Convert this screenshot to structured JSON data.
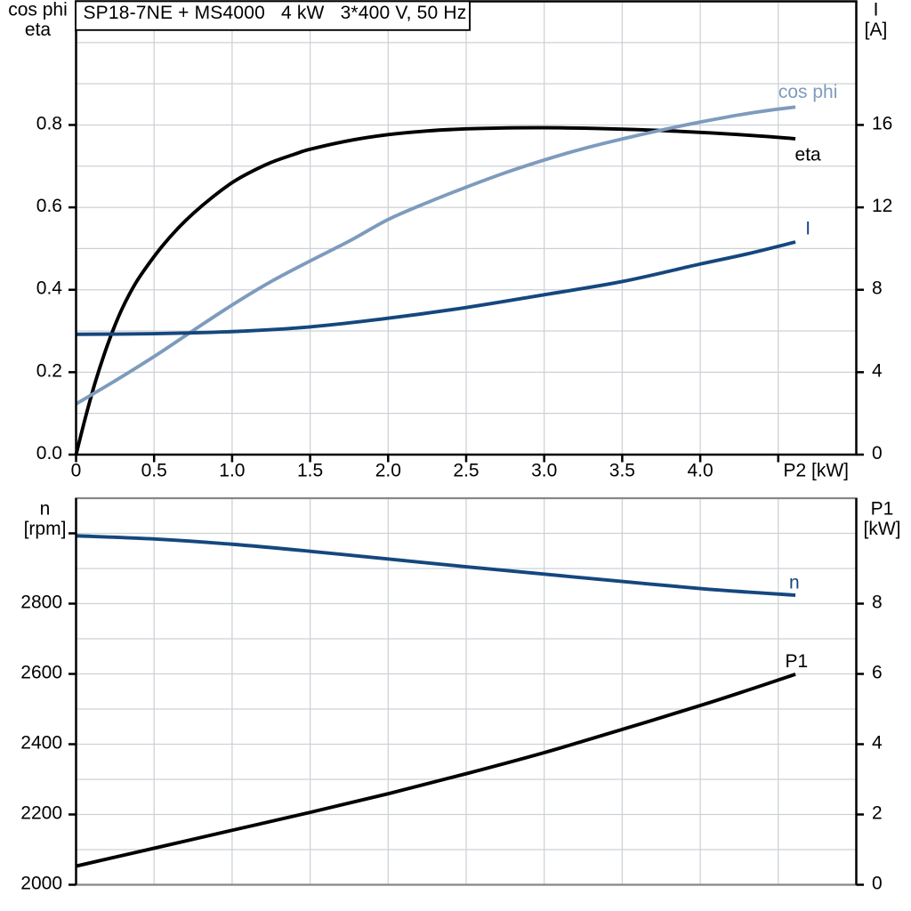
{
  "title_box": {
    "text": "SP18-7NE + MS4000   4 kW   3*400 V, 50 Hz"
  },
  "colors": {
    "black": "#000000",
    "dark_blue": "#15477e",
    "steel_blue": "#7d9bbd",
    "grid": "#cdd1d6",
    "frame_gray": "#85878a",
    "background": "#ffffff"
  },
  "chart_data": [
    {
      "id": "top",
      "type": "line",
      "title": "SP18-7NE + MS4000   4 kW   3*400 V, 50 Hz",
      "x_axis": {
        "label": "P2 [kW]",
        "min": 0,
        "max": 5,
        "grid_step": 0.5,
        "ticks": [
          {
            "value": 0,
            "label": "0"
          },
          {
            "value": 0.5,
            "label": "0.5"
          },
          {
            "value": 1,
            "label": "1.0"
          },
          {
            "value": 1.5,
            "label": "1.5"
          },
          {
            "value": 2,
            "label": "2.0"
          },
          {
            "value": 2.5,
            "label": "2.5"
          },
          {
            "value": 3,
            "label": "3.0"
          },
          {
            "value": 3.5,
            "label": "3.5"
          },
          {
            "value": 4,
            "label": "4.0"
          },
          {
            "value": 4.5,
            "label": ""
          }
        ],
        "show_tick_labels": true
      },
      "left_axis": {
        "title_lines": [
          "cos phi",
          "eta"
        ],
        "min": 0,
        "max": 1.1,
        "grid_step": 0.1,
        "ticks": [
          {
            "value": 0,
            "label": "0.0"
          },
          {
            "value": 0.2,
            "label": "0.2"
          },
          {
            "value": 0.4,
            "label": "0.4"
          },
          {
            "value": 0.6,
            "label": "0.6"
          },
          {
            "value": 0.8,
            "label": "0.8"
          }
        ]
      },
      "right_axis": {
        "title_lines": [
          "I",
          "[A]"
        ],
        "min": 0,
        "max": 22,
        "ticks": [
          {
            "value": 0,
            "label": "0"
          },
          {
            "value": 4,
            "label": "4"
          },
          {
            "value": 8,
            "label": "8"
          },
          {
            "value": 12,
            "label": "12"
          },
          {
            "value": 16,
            "label": "16"
          }
        ]
      },
      "series": [
        {
          "name": "eta",
          "axis": "left",
          "color_key": "black",
          "label": {
            "text": "eta",
            "x": 4.69,
            "y": 0.728
          },
          "points": [
            [
              0,
              0
            ],
            [
              0.06,
              0.09
            ],
            [
              0.12,
              0.172
            ],
            [
              0.18,
              0.243
            ],
            [
              0.24,
              0.305
            ],
            [
              0.3,
              0.358
            ],
            [
              0.38,
              0.415
            ],
            [
              0.46,
              0.46
            ],
            [
              0.55,
              0.505
            ],
            [
              0.65,
              0.548
            ],
            [
              0.75,
              0.585
            ],
            [
              0.875,
              0.625
            ],
            [
              1.0,
              0.66
            ],
            [
              1.1,
              0.682
            ],
            [
              1.25,
              0.709
            ],
            [
              1.4,
              0.729
            ],
            [
              1.5,
              0.741
            ],
            [
              1.75,
              0.762
            ],
            [
              2.0,
              0.7765
            ],
            [
              2.25,
              0.7855
            ],
            [
              2.5,
              0.7905
            ],
            [
              2.75,
              0.7928
            ],
            [
              3.0,
              0.7932
            ],
            [
              3.25,
              0.7922
            ],
            [
              3.5,
              0.7898
            ],
            [
              3.75,
              0.7865
            ],
            [
              4.0,
              0.782
            ],
            [
              4.25,
              0.7765
            ],
            [
              4.45,
              0.7715
            ],
            [
              4.61,
              0.7665
            ]
          ]
        },
        {
          "name": "cos phi",
          "axis": "left",
          "color_key": "steel_blue",
          "label": {
            "text": "cos phi",
            "x": 4.69,
            "y": 0.88
          },
          "points": [
            [
              0,
              0.123
            ],
            [
              0.25,
              0.179
            ],
            [
              0.5,
              0.238
            ],
            [
              0.75,
              0.301
            ],
            [
              1.0,
              0.363
            ],
            [
              1.25,
              0.42
            ],
            [
              1.5,
              0.47
            ],
            [
              1.75,
              0.518
            ],
            [
              2.0,
              0.5705
            ],
            [
              2.25,
              0.6115
            ],
            [
              2.5,
              0.649
            ],
            [
              2.75,
              0.684
            ],
            [
              3.0,
              0.715
            ],
            [
              3.25,
              0.7425
            ],
            [
              3.5,
              0.766
            ],
            [
              3.75,
              0.7875
            ],
            [
              4.0,
              0.807
            ],
            [
              4.25,
              0.8245
            ],
            [
              4.45,
              0.836
            ],
            [
              4.61,
              0.8435
            ]
          ]
        },
        {
          "name": "I",
          "axis": "right",
          "color_key": "dark_blue",
          "label": {
            "text": "I",
            "x": 4.69,
            "y": 10.97
          },
          "points": [
            [
              0,
              5.84
            ],
            [
              0.5,
              5.87
            ],
            [
              1.0,
              5.97
            ],
            [
              1.5,
              6.2
            ],
            [
              2.0,
              6.62
            ],
            [
              2.5,
              7.14
            ],
            [
              3.0,
              7.76
            ],
            [
              3.5,
              8.4
            ],
            [
              4.0,
              9.25
            ],
            [
              4.3,
              9.74
            ],
            [
              4.61,
              10.32
            ]
          ]
        }
      ]
    },
    {
      "id": "bottom",
      "type": "line",
      "x_axis": {
        "label": "",
        "min": 0,
        "max": 5,
        "grid_step": 0.5,
        "ticks": [],
        "show_tick_labels": false
      },
      "left_axis": {
        "title_lines": [
          "n",
          "[rpm]"
        ],
        "min": 2000,
        "max": 3100,
        "grid_step": 100,
        "ticks": [
          {
            "value": 2000,
            "label": "2000"
          },
          {
            "value": 2200,
            "label": "2200"
          },
          {
            "value": 2400,
            "label": "2400"
          },
          {
            "value": 2600,
            "label": "2600"
          },
          {
            "value": 2800,
            "label": "2800"
          },
          {
            "value": 3000,
            "label": ""
          }
        ]
      },
      "right_axis": {
        "title_lines": [
          "P1",
          "[kW]"
        ],
        "min": 0,
        "max": 11,
        "ticks": [
          {
            "value": 0,
            "label": "0"
          },
          {
            "value": 2,
            "label": "2"
          },
          {
            "value": 4,
            "label": "4"
          },
          {
            "value": 6,
            "label": "6"
          },
          {
            "value": 8,
            "label": "8"
          }
        ]
      },
      "series": [
        {
          "name": "n",
          "axis": "left",
          "color_key": "dark_blue",
          "label": {
            "text": "n",
            "x": 4.603,
            "y": 2859
          },
          "points": [
            [
              0,
              2993
            ],
            [
              0.5,
              2984
            ],
            [
              1.0,
              2969
            ],
            [
              1.5,
              2949
            ],
            [
              2.0,
              2927
            ],
            [
              2.5,
              2905
            ],
            [
              3.0,
              2884
            ],
            [
              3.5,
              2863
            ],
            [
              4.0,
              2843
            ],
            [
              4.3,
              2833
            ],
            [
              4.61,
              2824
            ]
          ]
        },
        {
          "name": "P1",
          "axis": "right",
          "color_key": "black",
          "label": {
            "text": "P1",
            "x": 4.617,
            "y": 6.35
          },
          "points": [
            [
              0,
              0.53
            ],
            [
              0.5,
              1.04
            ],
            [
              1.0,
              1.55
            ],
            [
              1.5,
              2.06
            ],
            [
              2.0,
              2.59
            ],
            [
              2.5,
              3.16
            ],
            [
              3.0,
              3.76
            ],
            [
              3.5,
              4.42
            ],
            [
              4.0,
              5.1
            ],
            [
              4.3,
              5.53
            ],
            [
              4.61,
              5.99
            ]
          ]
        }
      ]
    }
  ]
}
